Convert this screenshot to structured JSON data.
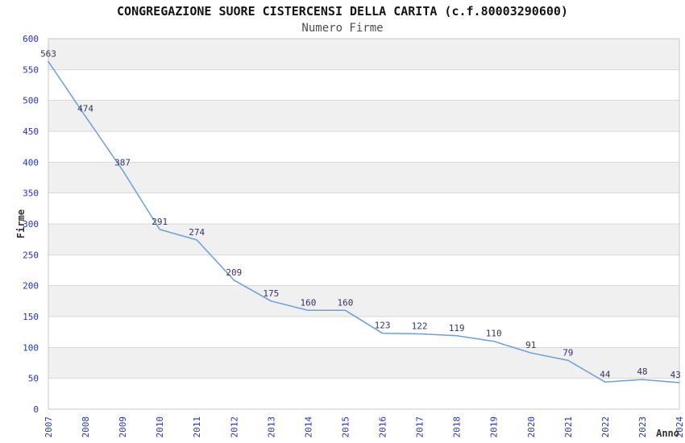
{
  "chart_data": {
    "type": "line",
    "title": "CONGREGAZIONE SUORE CISTERCENSI DELLA CARITA (c.f.80003290600)",
    "subtitle": "Numero Firme",
    "xlabel": "Anno",
    "ylabel": "Firme",
    "x": [
      "2007",
      "2008",
      "2009",
      "2010",
      "2011",
      "2012",
      "2013",
      "2014",
      "2015",
      "2016",
      "2017",
      "2018",
      "2019",
      "2020",
      "2021",
      "2022",
      "2023",
      "2024"
    ],
    "series": [
      {
        "name": "Numero Firme",
        "values": [
          563,
          474,
          387,
          291,
          274,
          209,
          175,
          160,
          160,
          123,
          122,
          119,
          110,
          91,
          79,
          44,
          48,
          43
        ]
      }
    ],
    "ylim": [
      0,
      600
    ],
    "ytick_step": 50,
    "grid": "alternating-horizontal-bands",
    "legend": "none",
    "data_labels_visible": true,
    "colors": {
      "title": "#141414",
      "subtitle": "#4d4d4d",
      "axis_tick_labels": "#2233cc",
      "data_labels": "#333366",
      "line": "#6b9fdf",
      "band_gray": "#f0f0f0",
      "band_white": "#ffffff",
      "grid_line": "#d9d9d9",
      "plot_border": "#c8c8c8",
      "axis_titles": "#333333"
    }
  }
}
